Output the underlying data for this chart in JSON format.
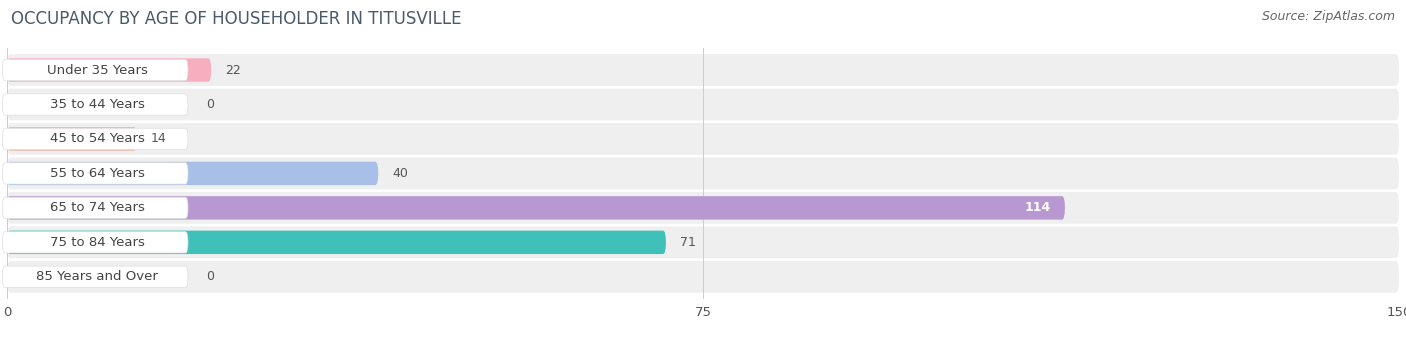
{
  "title": "OCCUPANCY BY AGE OF HOUSEHOLDER IN TITUSVILLE",
  "source": "Source: ZipAtlas.com",
  "categories": [
    "Under 35 Years",
    "35 to 44 Years",
    "45 to 54 Years",
    "55 to 64 Years",
    "65 to 74 Years",
    "75 to 84 Years",
    "85 Years and Over"
  ],
  "values": [
    22,
    0,
    14,
    40,
    114,
    71,
    0
  ],
  "bar_colors": [
    "#f7afc0",
    "#f9c98a",
    "#f2aa98",
    "#a8c0e8",
    "#b898d0",
    "#3fc0b8",
    "#c4c8f2"
  ],
  "xlim": [
    0,
    150
  ],
  "xticks": [
    0,
    75,
    150
  ],
  "background_color": "#ffffff",
  "bar_bg_color": "#efefef",
  "row_bg_color": "#f7f7f7",
  "title_fontsize": 12,
  "source_fontsize": 9,
  "label_fontsize": 9.5,
  "value_fontsize": 9,
  "bar_height": 0.68,
  "figsize": [
    14.06,
    3.4
  ]
}
